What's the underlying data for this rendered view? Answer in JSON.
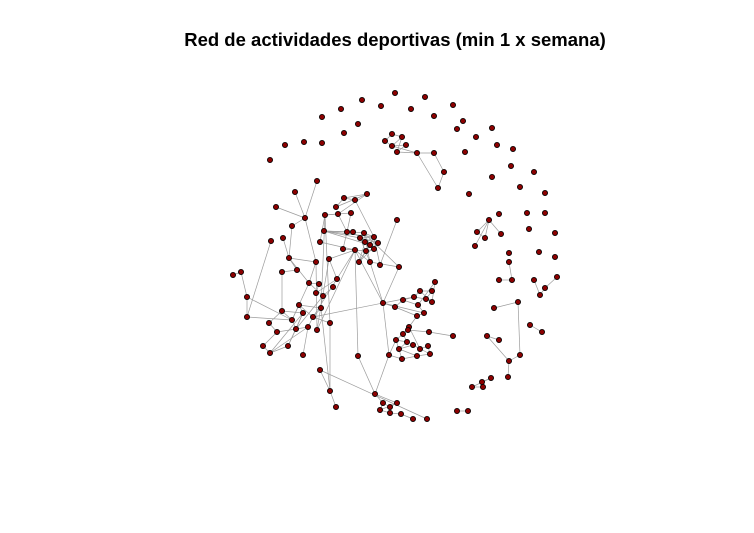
{
  "title": "Red de actividades deportivas (min 1 x semana)",
  "colors": {
    "node_fill": "#8b0000",
    "node_stroke": "#000000",
    "edge": "#9c9c9c",
    "background": "#ffffff"
  }
}
